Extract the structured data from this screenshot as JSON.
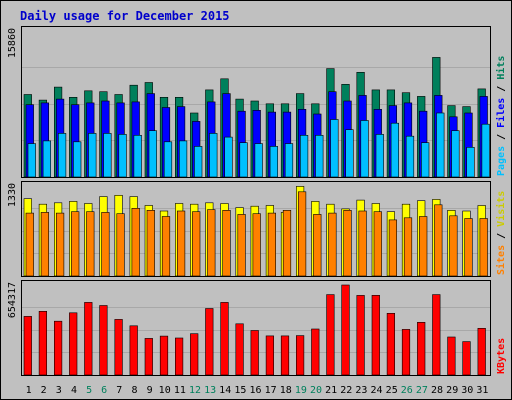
{
  "chart_data": [
    {
      "type": "bar",
      "title": "Daily usage for December 2015",
      "categories": [
        "1",
        "2",
        "3",
        "4",
        "5",
        "6",
        "7",
        "8",
        "9",
        "10",
        "11",
        "12",
        "13",
        "14",
        "15",
        "16",
        "17",
        "18",
        "19",
        "20",
        "21",
        "22",
        "23",
        "24",
        "25",
        "26",
        "27",
        "28",
        "29",
        "30",
        "31"
      ],
      "weekend_days": [
        "5",
        "6",
        "12",
        "13",
        "19",
        "20",
        "26",
        "27"
      ],
      "ylim": [
        0,
        15860
      ],
      "max_label": "15860",
      "series": [
        {
          "name": "Hits",
          "color": "#00805c",
          "values": [
            8900,
            8300,
            9700,
            8600,
            9300,
            9200,
            8900,
            9900,
            10200,
            8600,
            8600,
            6900,
            9400,
            10600,
            8400,
            8200,
            7900,
            7900,
            9000,
            7900,
            11700,
            10000,
            11300,
            9400,
            9400,
            9100,
            8700,
            12900,
            7700,
            7600,
            9500
          ]
        },
        {
          "name": "Files",
          "color": "#0000ff",
          "values": [
            7800,
            8000,
            8400,
            7800,
            8000,
            8200,
            8000,
            8100,
            9000,
            7500,
            7600,
            6000,
            8100,
            9000,
            7100,
            7200,
            7000,
            7000,
            7300,
            6800,
            9200,
            8200,
            8800,
            7300,
            7700,
            8000,
            7100,
            8800,
            6500,
            6900,
            8700
          ]
        },
        {
          "name": "Pages",
          "color": "#00c0ff",
          "values": [
            3600,
            3900,
            4700,
            3800,
            4700,
            4700,
            4600,
            4500,
            5000,
            3800,
            3900,
            3300,
            4700,
            4300,
            3700,
            3600,
            3300,
            3600,
            4500,
            4500,
            6200,
            5100,
            6100,
            4600,
            5800,
            4400,
            3700,
            6900,
            5000,
            3200,
            5700
          ]
        }
      ]
    },
    {
      "type": "bar",
      "ylim": [
        0,
        1330
      ],
      "max_label": "1330",
      "series": [
        {
          "name": "Visits",
          "color": "#ffff00",
          "values": [
            1130,
            1050,
            1070,
            1090,
            1060,
            1160,
            1180,
            1160,
            1030,
            950,
            1060,
            1050,
            1070,
            1060,
            1000,
            1020,
            1030,
            930,
            1310,
            1090,
            1050,
            980,
            1110,
            1060,
            940,
            1050,
            1100,
            1120,
            960,
            950,
            1030
          ]
        },
        {
          "name": "Sites",
          "color": "#ff8000",
          "values": [
            920,
            930,
            920,
            940,
            940,
            930,
            910,
            990,
            960,
            870,
            950,
            940,
            970,
            960,
            900,
            910,
            920,
            960,
            1230,
            900,
            920,
            960,
            950,
            940,
            820,
            850,
            870,
            1040,
            880,
            840,
            840
          ]
        }
      ]
    },
    {
      "type": "bar",
      "ylim": [
        0,
        654317
      ],
      "max_label": "654317",
      "series": [
        {
          "name": "KBytes",
          "color": "#ff0000",
          "values": [
            421000,
            458000,
            387000,
            447000,
            522000,
            500000,
            400000,
            354000,
            263000,
            280000,
            266000,
            297000,
            478000,
            522000,
            368000,
            320000,
            281000,
            281000,
            283000,
            331000,
            578000,
            647000,
            572000,
            573000,
            444000,
            328000,
            379000,
            578000,
            273000,
            240000,
            336000
          ]
        }
      ]
    }
  ]
}
